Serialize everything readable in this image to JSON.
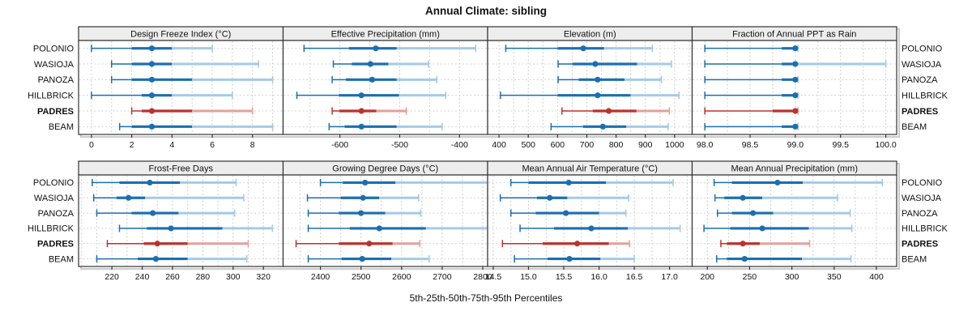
{
  "title": "Annual Climate: sibling",
  "caption": "5th-25th-50th-75th-95th Percentiles",
  "percentile_labels": [
    "5th",
    "25th",
    "50th",
    "75th",
    "95th"
  ],
  "sites": [
    {
      "label": "POLONIO",
      "bold": false,
      "highlight": false
    },
    {
      "label": "WASIOJA",
      "bold": false,
      "highlight": false
    },
    {
      "label": "PANOZA",
      "bold": false,
      "highlight": false
    },
    {
      "label": "HILLBRICK",
      "bold": false,
      "highlight": false
    },
    {
      "label": "PADRES",
      "bold": true,
      "highlight": true
    },
    {
      "label": "BEAM",
      "bold": false,
      "highlight": false
    }
  ],
  "colors": {
    "blue": "#1b6faf",
    "blue_light": "#a5cbe5",
    "red": "#ba332e",
    "red_light": "#e2a19d",
    "grid": "#c9c9c9",
    "row_line": "#cfcfcf",
    "border": "#333333",
    "strip_bg": "#ededed",
    "text": "#111111",
    "shadow": "#a0a0a0"
  },
  "chart_data": [
    {
      "type": "dotplot-percentiles",
      "row": 0,
      "col": 0,
      "title": "Design Freeze Index (°C)",
      "xlim": [
        -0.64,
        9.52
      ],
      "minor_step": 1,
      "ticks": [
        0,
        2,
        4,
        6,
        8
      ],
      "tick_labels": [
        "0",
        "2",
        "4",
        "6",
        "8"
      ],
      "series": [
        {
          "name": "POLONIO",
          "values": [
            0,
            2,
            3,
            4,
            6
          ]
        },
        {
          "name": "WASIOJA",
          "values": [
            1,
            2,
            3,
            4,
            8.3
          ]
        },
        {
          "name": "PANOZA",
          "values": [
            1,
            2,
            3,
            5,
            9
          ]
        },
        {
          "name": "HILLBRICK",
          "values": [
            0,
            2.5,
            3,
            4,
            7
          ]
        },
        {
          "name": "PADRES",
          "values": [
            2,
            2.5,
            3,
            5,
            8
          ]
        },
        {
          "name": "BEAM",
          "values": [
            1.4,
            2,
            3,
            5,
            9
          ]
        }
      ]
    },
    {
      "type": "dotplot-percentiles",
      "row": 0,
      "col": 1,
      "title": "Effective Precipitation (mm)",
      "xlim": [
        -695,
        -353
      ],
      "minor_step": 50,
      "ticks": [
        -600,
        -500,
        -400
      ],
      "tick_labels": [
        "-600",
        "-500",
        "-400"
      ],
      "series": [
        {
          "name": "POLONIO",
          "values": [
            -660,
            -585,
            -540,
            -505,
            -373
          ]
        },
        {
          "name": "WASIOJA",
          "values": [
            -611,
            -580,
            -549,
            -519,
            -452
          ]
        },
        {
          "name": "PANOZA",
          "values": [
            -613,
            -590,
            -546,
            -505,
            -438
          ]
        },
        {
          "name": "HILLBRICK",
          "values": [
            -672,
            -602,
            -564,
            -501,
            -423
          ]
        },
        {
          "name": "PADRES",
          "values": [
            -613,
            -601,
            -564,
            -539,
            -489
          ]
        },
        {
          "name": "BEAM",
          "values": [
            -618,
            -592,
            -564,
            -505,
            -429
          ]
        }
      ]
    },
    {
      "type": "dotplot-percentiles",
      "row": 0,
      "col": 2,
      "title": "Elevation (m)",
      "xlim": [
        361,
        1060
      ],
      "minor_step": 50,
      "ticks": [
        400,
        500,
        600,
        700,
        800,
        900,
        1000
      ],
      "tick_labels": [
        "400",
        "500",
        "600",
        "700",
        "800",
        "900",
        "1000"
      ],
      "series": [
        {
          "name": "POLONIO",
          "values": [
            423,
            600,
            688,
            759,
            924
          ]
        },
        {
          "name": "WASIOJA",
          "values": [
            602,
            651,
            729,
            872,
            989
          ]
        },
        {
          "name": "PANOZA",
          "values": [
            602,
            672,
            737,
            829,
            955
          ]
        },
        {
          "name": "HILLBRICK",
          "values": [
            405,
            600,
            737,
            850,
            1015
          ]
        },
        {
          "name": "PADRES",
          "values": [
            615,
            720,
            775,
            870,
            982
          ]
        },
        {
          "name": "BEAM",
          "values": [
            578,
            687,
            755,
            835,
            978
          ]
        }
      ]
    },
    {
      "type": "dotplot-percentiles",
      "row": 0,
      "col": 3,
      "title": "Fraction of Annual PPT as Rain",
      "xlim": [
        97.86,
        100.12
      ],
      "minor_step": 0.25,
      "ticks": [
        98.0,
        98.5,
        99.0,
        99.5,
        100.0
      ],
      "tick_labels": [
        "98.0",
        "98.5",
        "99.0",
        "99.5",
        "100.0"
      ],
      "series": [
        {
          "name": "POLONIO",
          "values": [
            98.0,
            98.85,
            99.0,
            99.0,
            99.03
          ]
        },
        {
          "name": "WASIOJA",
          "values": [
            98.0,
            98.85,
            99.0,
            99.0,
            100.0
          ]
        },
        {
          "name": "PANOZA",
          "values": [
            98.0,
            98.85,
            99.0,
            99.0,
            99.03
          ]
        },
        {
          "name": "HILLBRICK",
          "values": [
            98.0,
            98.85,
            99.0,
            99.0,
            99.03
          ]
        },
        {
          "name": "PADRES",
          "values": [
            98.0,
            98.75,
            99.0,
            99.0,
            99.03
          ]
        },
        {
          "name": "BEAM",
          "values": [
            98.0,
            98.85,
            99.0,
            99.0,
            99.03
          ]
        }
      ]
    },
    {
      "type": "dotplot-percentiles",
      "row": 1,
      "col": 0,
      "title": "Frost-Free Days",
      "xlim": [
        198,
        333
      ],
      "minor_step": 10,
      "ticks": [
        220,
        240,
        260,
        280,
        300,
        320
      ],
      "tick_labels": [
        "220",
        "240",
        "260",
        "280",
        "300",
        "320"
      ],
      "series": [
        {
          "name": "POLONIO",
          "values": [
            207,
            225,
            245,
            265,
            302
          ]
        },
        {
          "name": "WASIOJA",
          "values": [
            208,
            223,
            231,
            242,
            307
          ]
        },
        {
          "name": "PANOZA",
          "values": [
            210,
            233,
            247,
            264,
            301
          ]
        },
        {
          "name": "HILLBRICK",
          "values": [
            225,
            243,
            259,
            293,
            326
          ]
        },
        {
          "name": "PADRES",
          "values": [
            217,
            241,
            250,
            270,
            310
          ]
        },
        {
          "name": "BEAM",
          "values": [
            210,
            237,
            249,
            270,
            309
          ]
        }
      ]
    },
    {
      "type": "dotplot-percentiles",
      "row": 1,
      "col": 1,
      "title": "Growing Degree Days (°C)",
      "xlim": [
        2308,
        2812
      ],
      "minor_step": 50,
      "ticks": [
        2400,
        2500,
        2600,
        2700,
        2800
      ],
      "tick_labels": [
        "2400",
        "2500",
        "2600",
        "2700",
        "2800"
      ],
      "series": [
        {
          "name": "POLONIO",
          "values": [
            2400,
            2455,
            2510,
            2585,
            2825
          ]
        },
        {
          "name": "WASIOJA",
          "values": [
            2368,
            2450,
            2505,
            2545,
            2642
          ]
        },
        {
          "name": "PANOZA",
          "values": [
            2370,
            2445,
            2500,
            2560,
            2647
          ]
        },
        {
          "name": "HILLBRICK",
          "values": [
            2370,
            2472,
            2545,
            2660,
            2816
          ]
        },
        {
          "name": "PADRES",
          "values": [
            2340,
            2445,
            2520,
            2578,
            2645
          ]
        },
        {
          "name": "BEAM",
          "values": [
            2370,
            2452,
            2503,
            2575,
            2668
          ]
        }
      ]
    },
    {
      "type": "dotplot-percentiles",
      "row": 1,
      "col": 2,
      "title": "Mean Annual Air Temperature (°C)",
      "xlim": [
        14.42,
        17.32
      ],
      "minor_step": 0.25,
      "ticks": [
        14.5,
        15.0,
        15.5,
        16.0,
        16.5,
        17.0
      ],
      "tick_labels": [
        "14.5",
        "15.0",
        "15.5",
        "16.0",
        "16.5",
        "17.0"
      ],
      "series": [
        {
          "name": "POLONIO",
          "values": [
            14.75,
            15.0,
            15.57,
            16.1,
            17.05
          ]
        },
        {
          "name": "WASIOJA",
          "values": [
            14.6,
            15.12,
            15.3,
            15.55,
            16.42
          ]
        },
        {
          "name": "PANOZA",
          "values": [
            14.75,
            15.1,
            15.53,
            16.0,
            16.38
          ]
        },
        {
          "name": "HILLBRICK",
          "values": [
            14.88,
            15.36,
            15.89,
            16.41,
            17.15
          ]
        },
        {
          "name": "PADRES",
          "values": [
            14.63,
            15.2,
            15.69,
            16.14,
            16.43
          ]
        },
        {
          "name": "BEAM",
          "values": [
            14.8,
            15.27,
            15.58,
            16.02,
            16.5
          ]
        }
      ]
    },
    {
      "type": "dotplot-percentiles",
      "row": 1,
      "col": 3,
      "title": "Mean Annual Precipitation (mm)",
      "xlim": [
        182,
        424
      ],
      "minor_step": 25,
      "ticks": [
        200,
        250,
        300,
        350,
        400
      ],
      "tick_labels": [
        "200",
        "250",
        "300",
        "350",
        "400"
      ],
      "series": [
        {
          "name": "POLONIO",
          "values": [
            208,
            229,
            283,
            313,
            407
          ]
        },
        {
          "name": "WASIOJA",
          "values": [
            209,
            220,
            242,
            265,
            354
          ]
        },
        {
          "name": "PANOZA",
          "values": [
            212,
            229,
            254,
            278,
            369
          ]
        },
        {
          "name": "HILLBRICK",
          "values": [
            196,
            227,
            265,
            320,
            371
          ]
        },
        {
          "name": "PADRES",
          "values": [
            216,
            223,
            242,
            262,
            321
          ]
        },
        {
          "name": "BEAM",
          "values": [
            211,
            223,
            244,
            312,
            370
          ]
        }
      ]
    }
  ]
}
